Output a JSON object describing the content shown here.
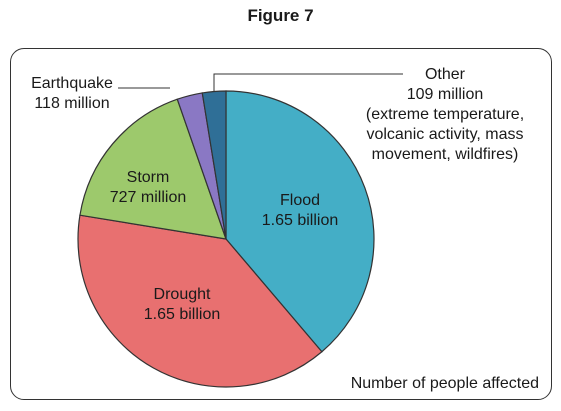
{
  "figure_title": "Figure 7",
  "chart_data": {
    "type": "pie",
    "caption": "Number of people affected",
    "slices": [
      {
        "name": "Flood",
        "value": 1.65,
        "value_label": "1.65 billion",
        "color": "#44aec6"
      },
      {
        "name": "Drought",
        "value": 1.65,
        "value_label": "1.65 billion",
        "color": "#e87070"
      },
      {
        "name": "Storm",
        "value": 0.727,
        "value_label": "727 million",
        "color": "#9dc96c"
      },
      {
        "name": "Earthquake",
        "value": 0.118,
        "value_label": "118 million",
        "color": "#8a78c4"
      },
      {
        "name": "Other",
        "value": 0.109,
        "value_label": "109 million",
        "color": "#2f6f97",
        "note": [
          "(extreme temperature,",
          "volcanic activity, mass",
          "movement, wildfires)"
        ]
      }
    ]
  }
}
